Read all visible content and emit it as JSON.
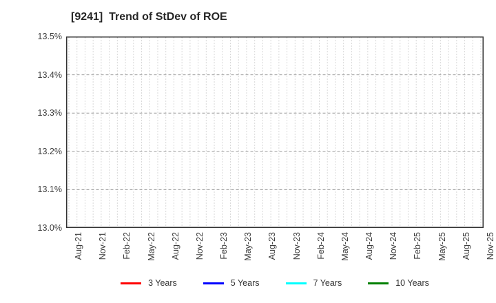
{
  "title": "[9241]  Trend of StDev of ROE",
  "chart_data": {
    "type": "line",
    "title": "[9241]  Trend of StDev of ROE",
    "xlabel": "",
    "ylabel": "",
    "ylim": [
      13.0,
      13.5
    ],
    "y_tick_labels": [
      "13.5%",
      "13.4%",
      "13.3%",
      "13.2%",
      "13.1%",
      "13.0%"
    ],
    "y_tick_values": [
      13.5,
      13.4,
      13.3,
      13.2,
      13.1,
      13.0
    ],
    "x_tick_labels": [
      "Aug-21",
      "Nov-21",
      "Feb-22",
      "May-22",
      "Aug-22",
      "Nov-22",
      "Feb-23",
      "May-23",
      "Aug-23",
      "Nov-23",
      "Feb-24",
      "May-24",
      "Aug-24",
      "Nov-24",
      "Feb-25",
      "May-25",
      "Aug-25",
      "Nov-25"
    ],
    "x_label_step_months": 3,
    "x_month_count": 52,
    "grid": true,
    "grid_vertical_style": "dotted-monthly",
    "grid_horizontal_style": "dashed",
    "legend_position": "bottom-center",
    "series": [
      {
        "name": "3 Years",
        "color": "#ff0000",
        "values": []
      },
      {
        "name": "5 Years",
        "color": "#0000ff",
        "values": []
      },
      {
        "name": "7 Years",
        "color": "#00ffff",
        "values": []
      },
      {
        "name": "10 Years",
        "color": "#007f00",
        "values": []
      }
    ],
    "note": "No data lines are visible inside the plot area; axes and grid only."
  },
  "legend": {
    "items": [
      {
        "label": "3 Years",
        "color": "#ff0000"
      },
      {
        "label": "5 Years",
        "color": "#0000ff"
      },
      {
        "label": "7 Years",
        "color": "#00ffff"
      },
      {
        "label": "10 Years",
        "color": "#007f00"
      }
    ]
  },
  "colors": {
    "frame": "#333333",
    "grid_vertical": "#b3b3b3",
    "grid_horizontal": "#999999",
    "tick_text": "#3d3d3d",
    "title_text": "#262626",
    "background": "#ffffff"
  }
}
